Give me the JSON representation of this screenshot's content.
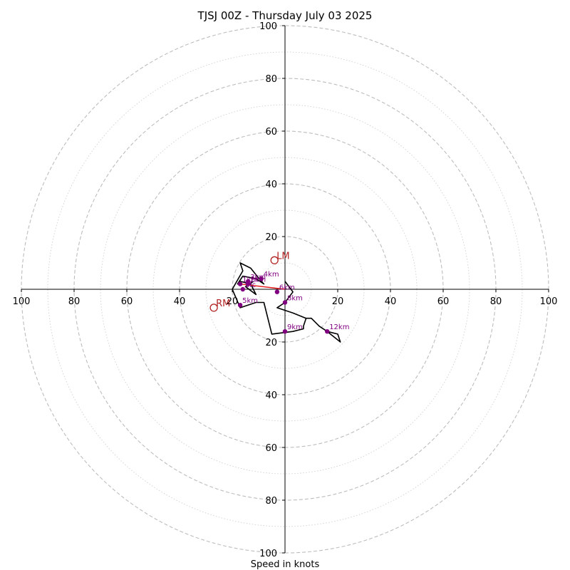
{
  "chart_data": {
    "type": "scatter",
    "title": "TJSJ 00Z - Thursday July 03 2025",
    "xlabel": "Speed in knots",
    "rlim": [
      0,
      100
    ],
    "x_tick_labels": [
      "100",
      "80",
      "60",
      "40",
      "20",
      "20",
      "40",
      "60",
      "80",
      "100"
    ],
    "y_tick_labels": [
      "100",
      "80",
      "60",
      "40",
      "20",
      "20",
      "40",
      "60",
      "80",
      "100"
    ],
    "grid": true,
    "hodograph": {
      "name": "hodograph",
      "points": [
        [
          -12,
          3
        ],
        [
          -15,
          1
        ],
        [
          -11,
          -2
        ],
        [
          -13,
          2
        ],
        [
          -17,
          3
        ],
        [
          -18,
          2
        ],
        [
          -16,
          5
        ],
        [
          -11,
          4
        ],
        [
          -8,
          2
        ],
        [
          -9,
          3
        ],
        [
          -13,
          8
        ],
        [
          -17,
          10
        ],
        [
          -16,
          7
        ],
        [
          -20,
          0
        ],
        [
          -20,
          0
        ],
        [
          -17,
          -7
        ],
        [
          -11,
          -5
        ],
        [
          -8,
          -5
        ],
        [
          -5,
          -17
        ],
        [
          3,
          -16
        ],
        [
          7,
          -15
        ],
        [
          7,
          -14
        ],
        [
          8,
          -11
        ],
        [
          10,
          -11
        ],
        [
          13,
          -14
        ],
        [
          16,
          -16
        ],
        [
          21,
          -20
        ],
        [
          20,
          -17
        ],
        [
          16,
          -16
        ],
        [
          13,
          -14
        ],
        [
          10,
          -11
        ],
        [
          8,
          -11
        ],
        [
          3,
          -9
        ],
        [
          -3,
          -7
        ],
        [
          0,
          -5
        ],
        [
          3,
          -1
        ],
        [
          0,
          3
        ]
      ]
    },
    "height_markers": [
      {
        "label": "4km",
        "u": -9,
        "v": 4
      },
      {
        "label": "3km",
        "u": -14,
        "v": 3
      },
      {
        "label": "2km",
        "u": -14,
        "v": 2
      },
      {
        "label": "1km",
        "u": -17,
        "v": 2
      },
      {
        "label": "Sfc",
        "u": -16,
        "v": 0
      },
      {
        "label": "5km",
        "u": -17,
        "v": -6
      },
      {
        "label": "6km",
        "u": -3,
        "v": -1
      },
      {
        "label": "8km",
        "u": 0,
        "v": -5
      },
      {
        "label": "9km",
        "u": 0,
        "v": -16
      },
      {
        "label": "12km",
        "u": 16,
        "v": -16
      }
    ],
    "storm_motion": [
      {
        "label": "LM",
        "u": -4,
        "v": 11
      },
      {
        "label": "RM",
        "u": -27,
        "v": -7
      }
    ],
    "shear_vector": {
      "from": [
        -17,
        2
      ],
      "to": [
        0,
        0
      ]
    }
  }
}
